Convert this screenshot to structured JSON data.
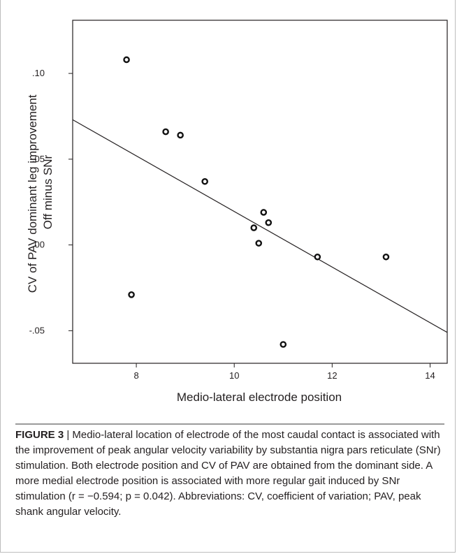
{
  "chart_data": {
    "type": "scatter",
    "title": "",
    "xlabel": "Medio-lateral electrode position",
    "ylabel_lines": [
      "CV of PAV dominant leg improvement",
      "Off minus SNr"
    ],
    "xlim": [
      6.7,
      14.35
    ],
    "ylim": [
      -0.069,
      0.131
    ],
    "x_ticks": [
      8,
      10,
      12,
      14
    ],
    "x_tick_labels": [
      "8",
      "10",
      "12",
      "14"
    ],
    "y_ticks": [
      -0.05,
      0.0,
      0.05,
      0.1
    ],
    "y_tick_labels": [
      "-.05",
      ".00",
      ".05",
      ".10"
    ],
    "grid": false,
    "points": [
      {
        "x": 7.8,
        "y": 0.108
      },
      {
        "x": 7.9,
        "y": -0.029
      },
      {
        "x": 8.6,
        "y": 0.066
      },
      {
        "x": 8.9,
        "y": 0.064
      },
      {
        "x": 9.4,
        "y": 0.037
      },
      {
        "x": 10.4,
        "y": 0.01
      },
      {
        "x": 10.5,
        "y": 0.001
      },
      {
        "x": 10.6,
        "y": 0.019
      },
      {
        "x": 10.7,
        "y": 0.013
      },
      {
        "x": 11.0,
        "y": -0.058
      },
      {
        "x": 11.7,
        "y": -0.007
      },
      {
        "x": 13.1,
        "y": -0.007
      }
    ],
    "fit_line": {
      "x": [
        6.7,
        14.35
      ],
      "y": [
        0.073,
        -0.051
      ]
    }
  },
  "caption": {
    "label": "FIGURE 3",
    "separator": " | ",
    "text": "Medio-lateral location of electrode of the most caudal contact is associated with the improvement of peak angular velocity variability by substantia nigra pars reticulate (SNr) stimulation. Both electrode position and CV of PAV are obtained from the dominant side. A more medial electrode position is associated with more regular gait induced by SNr stimulation (r = −0.594; p = 0.042). Abbreviations: CV, coefficient of variation; PAV, peak shank angular velocity."
  }
}
